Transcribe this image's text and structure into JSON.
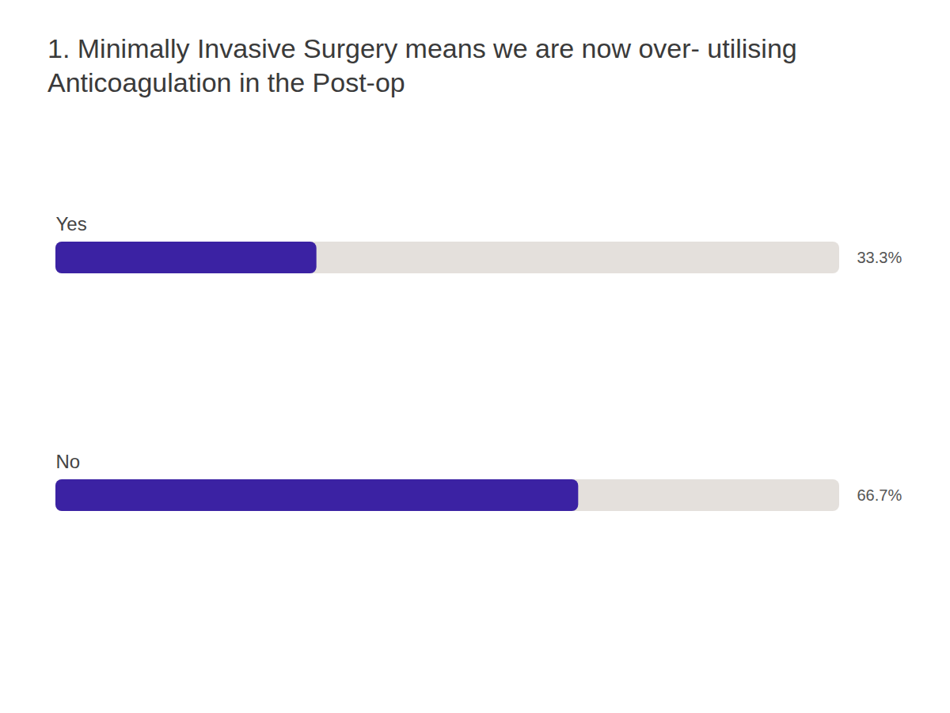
{
  "chart_data": {
    "type": "bar",
    "orientation": "horizontal",
    "title": "1. Minimally Invasive Surgery means we are now over- utilising Anticoagulation in the Post-op",
    "categories": [
      "Yes",
      "No"
    ],
    "values": [
      33.3,
      66.7
    ],
    "value_labels": [
      "33.3%",
      "66.7%"
    ],
    "data_labels": true,
    "color": "#3b22a3",
    "xlim": [
      0,
      100
    ],
    "tick_labels": false
  }
}
